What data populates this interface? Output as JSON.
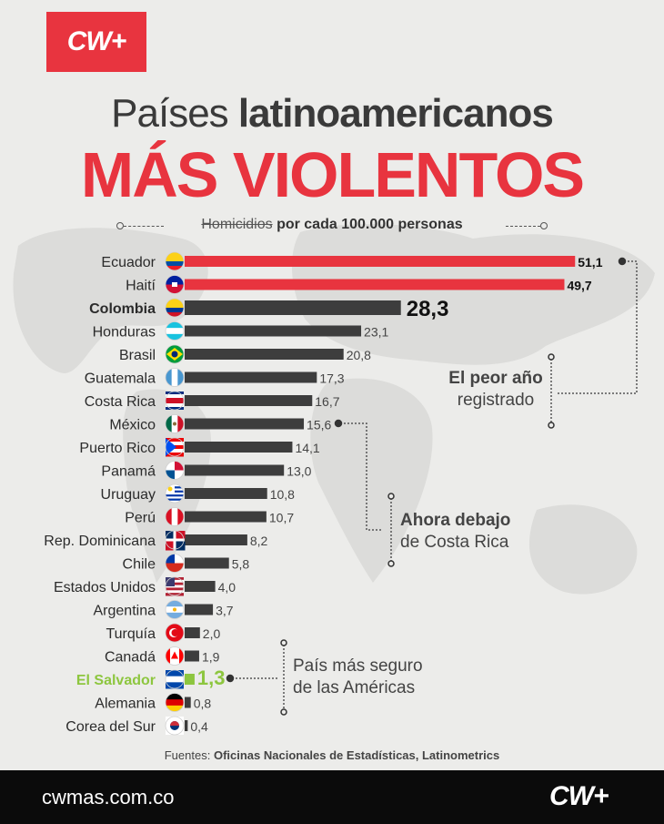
{
  "brand": {
    "logo_text": "CW+",
    "footer_url": "cwmas.com.co",
    "accent_color": "#e8343f",
    "bar_color": "#3d3d3d"
  },
  "header": {
    "title_light": "Países",
    "title_bold": "latinoamericanos",
    "title_main": "MÁS VIOLENTOS",
    "subtitle_strike": "Homicidios",
    "subtitle_rest": "por cada 100.000 personas"
  },
  "chart_data": {
    "type": "bar",
    "orientation": "horizontal",
    "categories": [
      "Ecuador",
      "Haití",
      "Colombia",
      "Honduras",
      "Brasil",
      "Guatemala",
      "Costa Rica",
      "México",
      "Puerto Rico",
      "Panamá",
      "Uruguay",
      "Perú",
      "Rep. Dominicana",
      "Chile",
      "Estados Unidos",
      "Argentina",
      "Turquía",
      "Canadá",
      "El Salvador",
      "Alemania",
      "Corea del Sur"
    ],
    "values": [
      51.1,
      49.7,
      28.3,
      23.1,
      20.8,
      17.3,
      16.7,
      15.6,
      14.1,
      13.0,
      10.8,
      10.7,
      8.2,
      5.8,
      4.0,
      3.7,
      2.0,
      1.9,
      1.3,
      0.8,
      0.4
    ],
    "value_labels": [
      "51,1",
      "49,7",
      "28,3",
      "23,1",
      "20,8",
      "17,3",
      "16,7",
      "15,6",
      "14,1",
      "13,0",
      "10,8",
      "10,7",
      "8,2",
      "5,8",
      "4,0",
      "3,7",
      "2,0",
      "1,9",
      "1,3",
      "0,8",
      "0,4"
    ],
    "highlight_red": [
      "Ecuador",
      "Haití"
    ],
    "highlight_bold": "Colombia",
    "highlight_green": "El Salvador",
    "flag_icons": [
      "flag-ecuador-icon",
      "flag-haiti-icon",
      "flag-colombia-icon",
      "flag-honduras-icon",
      "flag-brasil-icon",
      "flag-guatemala-icon",
      "flag-costa-rica-icon",
      "flag-mexico-icon",
      "flag-puerto-rico-icon",
      "flag-panama-icon",
      "flag-uruguay-icon",
      "flag-peru-icon",
      "flag-rep-dominicana-icon",
      "flag-chile-icon",
      "flag-estados-unidos-icon",
      "flag-argentina-icon",
      "flag-turquia-icon",
      "flag-canada-icon",
      "flag-el-salvador-icon",
      "flag-alemania-icon",
      "flag-corea-del-sur-icon"
    ],
    "green_color": "#8dc63f"
  },
  "annotations": {
    "worst_year_bold": "El peor año",
    "worst_year_rest": "registrado",
    "below_cr_bold": "Ahora debajo",
    "below_cr_rest": "de Costa Rica",
    "safest_line1": "País más seguro",
    "safest_line2": "de las Américas"
  },
  "source": {
    "label": "Fuentes:",
    "text": "Oficinas Nacionales de Estadísticas, Latinometrics"
  }
}
